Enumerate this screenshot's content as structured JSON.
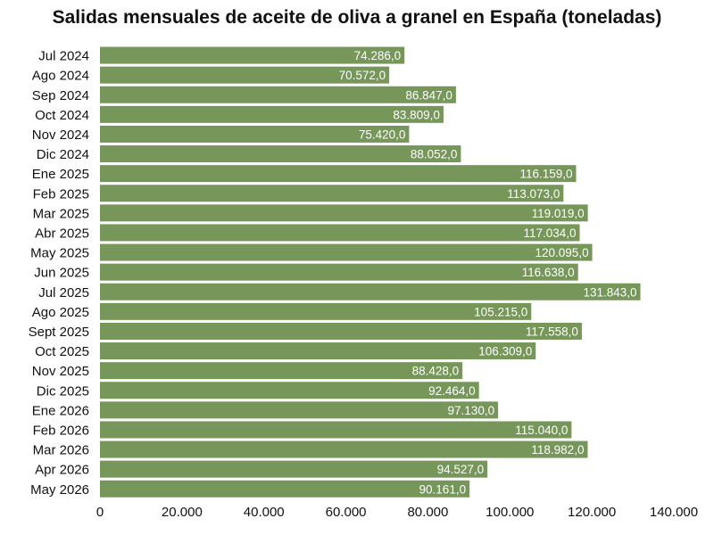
{
  "chart_data": {
    "type": "bar",
    "orientation": "horizontal",
    "title": "Salidas mensuales de aceite de oliva a granel en España (toneladas)",
    "xlabel": "",
    "ylabel": "",
    "xlim": [
      0,
      140000
    ],
    "x_ticks": [
      0,
      20000,
      40000,
      60000,
      80000,
      100000,
      120000,
      140000
    ],
    "x_tick_labels": [
      "0",
      "20.000",
      "40.000",
      "60.000",
      "80.000",
      "100.000",
      "120.000",
      "140.000"
    ],
    "grid": false,
    "legend": "none",
    "bar_color": "#76965a",
    "label_color": "#ffffff",
    "categories": [
      "Jul 2024",
      "Ago 2024",
      "Sep 2024",
      "Oct 2024",
      "Nov 2024",
      "Dic 2024",
      "Ene 2025",
      "Feb 2025",
      "Mar 2025",
      "Abr 2025",
      "May 2025",
      "Jun 2025",
      "Jul 2025",
      "Ago 2025",
      "Sept 2025",
      "Oct 2025",
      "Nov 2025",
      "Dic 2025",
      "Ene 2026",
      "Feb 2026",
      "Mar 2026",
      "Apr 2026",
      "May 2026"
    ],
    "values": [
      74286.0,
      70572.0,
      86847.0,
      83809.0,
      75420.0,
      88052.0,
      116159.0,
      113073.0,
      119019.0,
      117034.0,
      120095.0,
      116638.0,
      131843.0,
      105215.0,
      117558.0,
      106309.0,
      88428.0,
      92464.0,
      97130.0,
      115040.0,
      118982.0,
      94527.0,
      90161.0
    ],
    "value_labels": [
      "74.286,0",
      "70.572,0",
      "86.847,0",
      "83.809,0",
      "75.420,0",
      "88.052,0",
      "116.159,0",
      "113.073,0",
      "119.019,0",
      "117.034,0",
      "120.095,0",
      "116.638,0",
      "131.843,0",
      "105.215,0",
      "117.558,0",
      "106.309,0",
      "88.428,0",
      "92.464,0",
      "97.130,0",
      "115.040,0",
      "118.982,0",
      "94.527,0",
      "90.161,0"
    ]
  }
}
